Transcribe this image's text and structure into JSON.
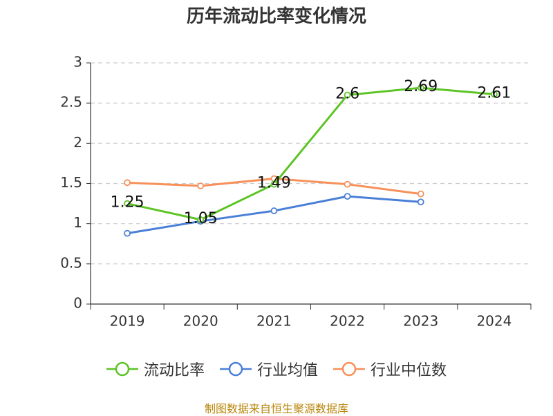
{
  "chart_data": {
    "type": "line",
    "title": "历年流动比率变化情况",
    "categories": [
      "2019",
      "2020",
      "2021",
      "2022",
      "2023",
      "2024"
    ],
    "ylim": [
      0,
      3
    ],
    "yticks": [
      "0",
      "0.5",
      "1",
      "1.5",
      "2",
      "2.5",
      "3"
    ],
    "grid": true,
    "legend_position": "bottom",
    "series": [
      {
        "name": "流动比率",
        "color": "#5cc424",
        "values": [
          1.25,
          1.05,
          1.49,
          2.6,
          2.69,
          2.61
        ],
        "labels": [
          "1.25",
          "1.05",
          "1.49",
          "2.6",
          "2.69",
          "2.61"
        ]
      },
      {
        "name": "行业均值",
        "color": "#4a7fd8",
        "values": [
          0.88,
          1.03,
          1.16,
          1.34,
          1.27,
          null
        ]
      },
      {
        "name": "行业中位数",
        "color": "#f7905a",
        "values": [
          1.51,
          1.47,
          1.56,
          1.49,
          1.37,
          null
        ]
      }
    ]
  },
  "footer": {
    "source": "制图数据来自恒生聚源数据库"
  }
}
